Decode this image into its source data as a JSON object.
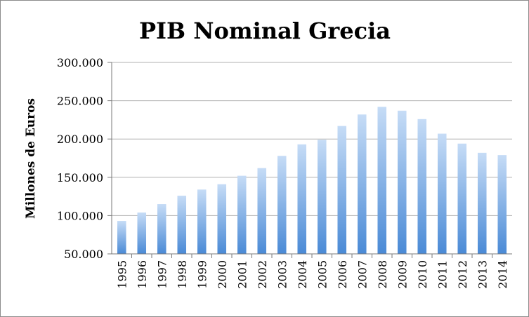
{
  "chart_data": {
    "type": "bar",
    "title": "PIB Nominal Grecia",
    "xlabel": "",
    "ylabel": "Millones de Euros",
    "ylim": [
      50000,
      300000
    ],
    "yticks": [
      50000,
      100000,
      150000,
      200000,
      250000,
      300000
    ],
    "ytick_labels": [
      "50.000",
      "100.000",
      "150.000",
      "200.000",
      "250.000",
      "300.000"
    ],
    "grid": true,
    "legend": "none",
    "categories": [
      "1995",
      "1996",
      "1997",
      "1998",
      "1999",
      "2000",
      "2001",
      "2002",
      "2003",
      "2004",
      "2005",
      "2006",
      "2007",
      "2008",
      "2009",
      "2010",
      "2011",
      "2012",
      "2013",
      "2014"
    ],
    "values": [
      93000,
      104000,
      115000,
      126000,
      134000,
      141000,
      152000,
      162000,
      178000,
      193000,
      199000,
      217000,
      232000,
      242000,
      237000,
      226000,
      207000,
      194000,
      182000,
      179000
    ],
    "colors": {
      "bar_top": "#c6dcf6",
      "bar_bottom": "#4a8ad6",
      "grid": "#b0b0b0",
      "axis": "#7a7a7a",
      "frame": "#8c8c8c"
    }
  }
}
